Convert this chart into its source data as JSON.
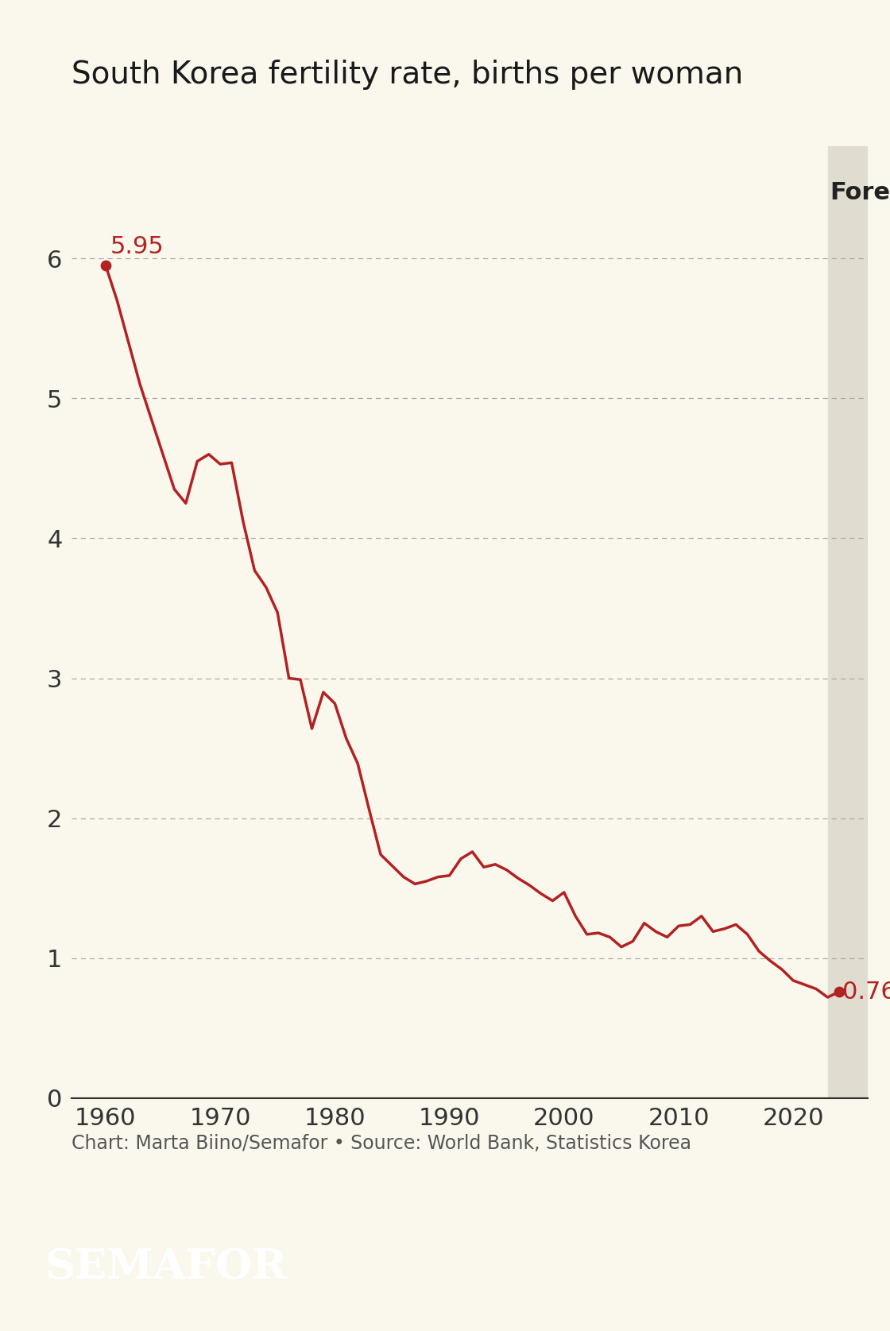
{
  "title": "South Korea fertility rate, births per woman",
  "line_color": "#b22222",
  "background_color": "#faf8ed",
  "forecast_shade_color": "#e0ddd0",
  "grid_color": "#aaaaaa",
  "years": [
    1960,
    1961,
    1962,
    1963,
    1964,
    1965,
    1966,
    1967,
    1968,
    1969,
    1970,
    1971,
    1972,
    1973,
    1974,
    1975,
    1976,
    1977,
    1978,
    1979,
    1980,
    1981,
    1982,
    1983,
    1984,
    1985,
    1986,
    1987,
    1988,
    1989,
    1990,
    1991,
    1992,
    1993,
    1994,
    1995,
    1996,
    1997,
    1998,
    1999,
    2000,
    2001,
    2002,
    2003,
    2004,
    2005,
    2006,
    2007,
    2008,
    2009,
    2010,
    2011,
    2012,
    2013,
    2014,
    2015,
    2016,
    2017,
    2018,
    2019,
    2020,
    2021,
    2022,
    2023,
    2024
  ],
  "values": [
    5.95,
    5.7,
    5.4,
    5.1,
    4.85,
    4.6,
    4.35,
    4.25,
    4.55,
    4.6,
    4.53,
    4.54,
    4.12,
    3.77,
    3.65,
    3.47,
    3.0,
    2.99,
    2.64,
    2.9,
    2.82,
    2.57,
    2.39,
    2.06,
    1.74,
    1.66,
    1.58,
    1.53,
    1.55,
    1.58,
    1.59,
    1.71,
    1.76,
    1.65,
    1.67,
    1.63,
    1.57,
    1.52,
    1.46,
    1.41,
    1.47,
    1.3,
    1.17,
    1.18,
    1.15,
    1.08,
    1.12,
    1.25,
    1.19,
    1.15,
    1.23,
    1.24,
    1.3,
    1.19,
    1.21,
    1.24,
    1.17,
    1.05,
    0.98,
    0.92,
    0.84,
    0.81,
    0.78,
    0.72,
    0.76
  ],
  "first_value": "5.95",
  "last_value": "0.76",
  "forecast_start_year": 2023,
  "xlim": [
    1957,
    2026.5
  ],
  "ylim": [
    0,
    6.8
  ],
  "yticks": [
    0,
    1,
    2,
    3,
    4,
    5,
    6
  ],
  "xticks": [
    1960,
    1970,
    1980,
    1990,
    2000,
    2010,
    2020
  ],
  "source_text": "Chart: Marta Biino/Semafor • Source: World Bank, Statistics Korea",
  "semafor_text": "SEMAFOR",
  "forecast_label": "Forecast",
  "title_fontsize": 28,
  "axis_fontsize": 22,
  "annotation_fontsize": 22,
  "source_fontsize": 17,
  "semafor_fontsize": 38
}
